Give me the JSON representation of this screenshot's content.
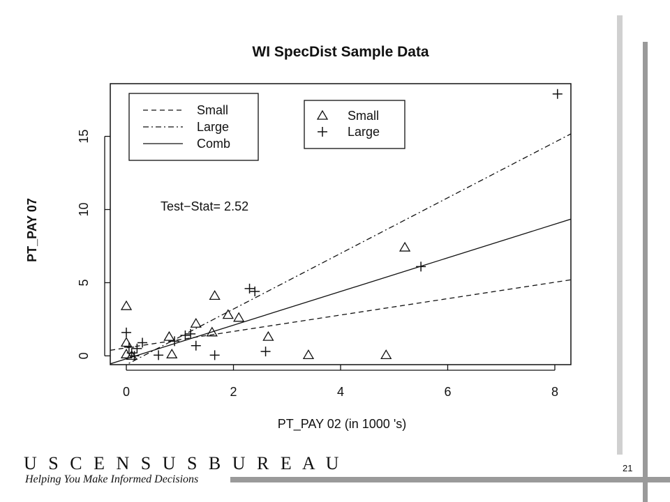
{
  "slide": {
    "logo_text": "U S C E N S U S B U R E A U",
    "tagline": "Helping You Make Informed Decisions",
    "page_number": "21"
  },
  "chart_data": {
    "type": "scatter",
    "title": "WI SpecDist Sample Data",
    "xlabel": "PT_PAY 02 (in  1000 's)",
    "ylabel": "PT_PAY 07",
    "xlim": [
      -0.3,
      8.3
    ],
    "ylim": [
      -0.6,
      18.6
    ],
    "x_ticks": [
      0,
      2,
      4,
      6,
      8
    ],
    "y_ticks": [
      0,
      5,
      10,
      15
    ],
    "x_tick_labels": [
      "0",
      "2",
      "4",
      "6",
      "8"
    ],
    "y_tick_labels": [
      "0",
      "5",
      "10",
      "15"
    ],
    "annotation": "Test−Stat= 2.52",
    "line_legend": [
      {
        "label": "Small",
        "style": "dashed"
      },
      {
        "label": "Large",
        "style": "dashdot"
      },
      {
        "label": "Comb",
        "style": "solid"
      }
    ],
    "point_legend": [
      {
        "label": "Small",
        "symbol": "triangle"
      },
      {
        "label": "Large",
        "symbol": "plus"
      }
    ],
    "series": [
      {
        "name": "Small",
        "symbol": "triangle",
        "points": [
          [
            0.0,
            3.4
          ],
          [
            0.0,
            0.9
          ],
          [
            0.0,
            0.1
          ],
          [
            0.1,
            0.0
          ],
          [
            0.8,
            1.3
          ],
          [
            0.85,
            0.1
          ],
          [
            1.3,
            2.2
          ],
          [
            1.6,
            1.6
          ],
          [
            1.65,
            4.1
          ],
          [
            1.9,
            2.8
          ],
          [
            2.1,
            2.6
          ],
          [
            2.65,
            1.3
          ],
          [
            3.4,
            0.05
          ],
          [
            4.85,
            0.05
          ],
          [
            5.2,
            7.4
          ]
        ]
      },
      {
        "name": "Large",
        "symbol": "plus",
        "points": [
          [
            0.0,
            1.6
          ],
          [
            0.05,
            0.6
          ],
          [
            0.1,
            0.2
          ],
          [
            0.15,
            0.0
          ],
          [
            0.2,
            0.5
          ],
          [
            0.3,
            0.9
          ],
          [
            0.6,
            0.05
          ],
          [
            0.9,
            1.0
          ],
          [
            1.1,
            1.4
          ],
          [
            1.2,
            1.5
          ],
          [
            1.3,
            0.7
          ],
          [
            1.65,
            0.05
          ],
          [
            2.3,
            4.6
          ],
          [
            2.4,
            4.4
          ],
          [
            2.6,
            0.3
          ],
          [
            5.5,
            6.1
          ],
          [
            8.05,
            17.9
          ]
        ]
      }
    ],
    "lines": [
      {
        "name": "Small",
        "style": "dashed",
        "intercept": 0.55,
        "slope": 0.56
      },
      {
        "name": "Large",
        "style": "dashdot",
        "intercept": -0.6,
        "slope": 1.9
      },
      {
        "name": "Comb",
        "style": "solid",
        "intercept": -0.2,
        "slope": 1.15
      }
    ]
  }
}
